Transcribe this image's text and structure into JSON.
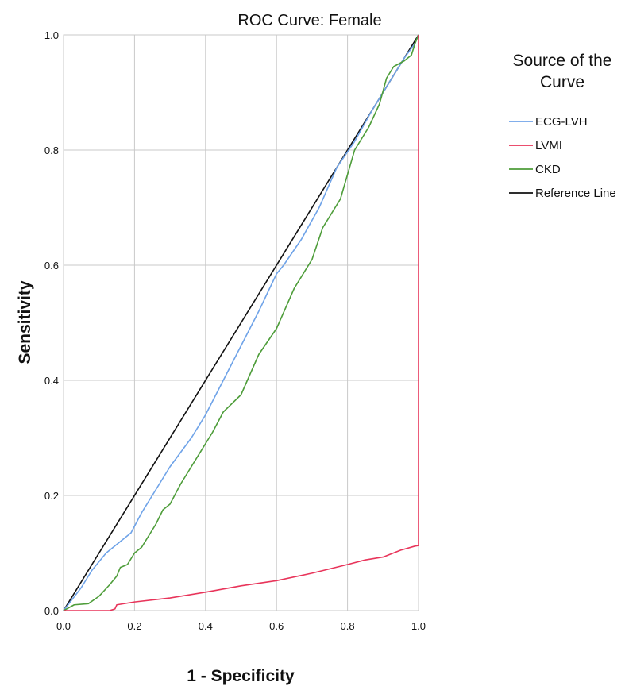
{
  "chart_data": {
    "type": "line",
    "title": "ROC Curve: Female",
    "xlabel": "1 - Specificity",
    "ylabel": "Sensitivity",
    "xlim": [
      0,
      1
    ],
    "ylim": [
      0,
      1
    ],
    "xticks": [
      "0.0",
      "0.2",
      "0.4",
      "0.6",
      "0.8",
      "1.0"
    ],
    "yticks": [
      "0.0",
      "0.2",
      "0.4",
      "0.6",
      "0.8",
      "1.0"
    ],
    "grid": true,
    "legend": {
      "title_line1": "Source of the",
      "title_line2": "Curve",
      "placement": "right"
    },
    "series": [
      {
        "name": "ECG-LVH",
        "color": "#6FA3E8",
        "points": [
          [
            0,
            0
          ],
          [
            0.05,
            0.04
          ],
          [
            0.08,
            0.07
          ],
          [
            0.12,
            0.1
          ],
          [
            0.15,
            0.115
          ],
          [
            0.19,
            0.135
          ],
          [
            0.22,
            0.17
          ],
          [
            0.25,
            0.2
          ],
          [
            0.3,
            0.25
          ],
          [
            0.36,
            0.3
          ],
          [
            0.4,
            0.34
          ],
          [
            0.45,
            0.4
          ],
          [
            0.5,
            0.46
          ],
          [
            0.55,
            0.52
          ],
          [
            0.6,
            0.585
          ],
          [
            0.62,
            0.6
          ],
          [
            0.67,
            0.645
          ],
          [
            0.72,
            0.7
          ],
          [
            0.77,
            0.77
          ],
          [
            0.82,
            0.815
          ],
          [
            0.87,
            0.87
          ],
          [
            0.9,
            0.9
          ],
          [
            0.93,
            0.93
          ],
          [
            0.96,
            0.96
          ],
          [
            0.99,
            0.985
          ],
          [
            1.0,
            1.0
          ]
        ]
      },
      {
        "name": "LVMI",
        "color": "#E8345A",
        "points": [
          [
            0,
            0
          ],
          [
            0.13,
            0.0
          ],
          [
            0.145,
            0.003
          ],
          [
            0.15,
            0.01
          ],
          [
            0.2,
            0.015
          ],
          [
            0.3,
            0.022
          ],
          [
            0.4,
            0.032
          ],
          [
            0.5,
            0.043
          ],
          [
            0.6,
            0.052
          ],
          [
            0.7,
            0.065
          ],
          [
            0.8,
            0.08
          ],
          [
            0.85,
            0.088
          ],
          [
            0.9,
            0.093
          ],
          [
            0.95,
            0.105
          ],
          [
            0.99,
            0.112
          ],
          [
            1.0,
            0.113
          ],
          [
            1.0,
            0.98
          ],
          [
            1.0,
            1.0
          ]
        ]
      },
      {
        "name": "CKD",
        "color": "#4E9D3A",
        "points": [
          [
            0,
            0
          ],
          [
            0.03,
            0.01
          ],
          [
            0.07,
            0.012
          ],
          [
            0.1,
            0.025
          ],
          [
            0.13,
            0.045
          ],
          [
            0.15,
            0.06
          ],
          [
            0.16,
            0.075
          ],
          [
            0.18,
            0.08
          ],
          [
            0.2,
            0.1
          ],
          [
            0.22,
            0.11
          ],
          [
            0.24,
            0.13
          ],
          [
            0.26,
            0.15
          ],
          [
            0.28,
            0.175
          ],
          [
            0.3,
            0.185
          ],
          [
            0.33,
            0.22
          ],
          [
            0.37,
            0.26
          ],
          [
            0.42,
            0.31
          ],
          [
            0.45,
            0.345
          ],
          [
            0.5,
            0.375
          ],
          [
            0.55,
            0.445
          ],
          [
            0.6,
            0.49
          ],
          [
            0.65,
            0.56
          ],
          [
            0.7,
            0.61
          ],
          [
            0.73,
            0.665
          ],
          [
            0.78,
            0.715
          ],
          [
            0.82,
            0.8
          ],
          [
            0.86,
            0.84
          ],
          [
            0.89,
            0.88
          ],
          [
            0.91,
            0.925
          ],
          [
            0.93,
            0.945
          ],
          [
            0.96,
            0.955
          ],
          [
            0.98,
            0.965
          ],
          [
            0.99,
            0.985
          ],
          [
            1.0,
            1.0
          ]
        ]
      },
      {
        "name": "Reference Line",
        "color": "#111111",
        "points": [
          [
            0,
            0
          ],
          [
            1,
            1
          ]
        ]
      }
    ]
  }
}
